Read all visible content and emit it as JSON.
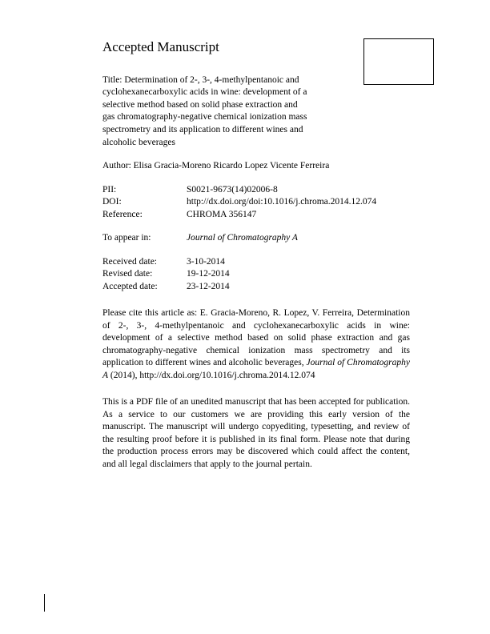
{
  "heading": "Accepted Manuscript",
  "title_prefix": "Title: ",
  "title_text": "Determination of 2-, 3-, 4-methylpentanoic and cyclohexanecarboxylic acids in wine: development of a selective method based on solid phase extraction and gas chromatography-negative chemical ionization mass spectrometry and its application to different wines and alcoholic beverages",
  "author_prefix": "Author: ",
  "author_text": " Elisa Gracia-Moreno Ricardo Lopez Vicente Ferreira",
  "meta": {
    "pii_label": "PII:",
    "pii_value": "S0021-9673(14)02006-8",
    "doi_label": "DOI:",
    "doi_value": "http://dx.doi.org/doi:10.1016/j.chroma.2014.12.074",
    "ref_label": "Reference:",
    "ref_value": "CHROMA 356147"
  },
  "appear": {
    "label": "To appear in:",
    "value": "Journal of Chromatography A"
  },
  "dates": {
    "received_label": "Received date:",
    "received_value": "3-10-2014",
    "revised_label": "Revised date:",
    "revised_value": "19-12-2014",
    "accepted_label": "Accepted date:",
    "accepted_value": "23-12-2014"
  },
  "citation": "Please cite this article as: E. Gracia-Moreno, R. Lopez, V. Ferreira, Determination of 2-, 3-, 4-methylpentanoic and cyclohexanecarboxylic acids in wine: development of a selective method based on solid phase extraction and gas chromatography-negative chemical ionization mass spectrometry and its application to different wines and alcoholic beverages, ",
  "citation_journal": "Journal of Chromatography A",
  "citation_tail": " (2014), http://dx.doi.org/10.1016/j.chroma.2014.12.074",
  "disclaimer": "This is a PDF file of an unedited manuscript that has been accepted for publication. As a service to our customers we are providing this early version of the manuscript. The manuscript will undergo copyediting, typesetting, and review of the resulting proof before it is published in its final form. Please note that during the production process errors may be discovered which could affect the content, and all legal disclaimers that apply to the journal pertain."
}
